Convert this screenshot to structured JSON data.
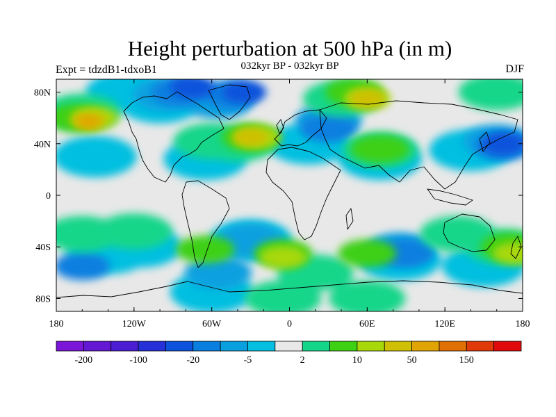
{
  "title": "Height perturbation at 500 hPa (in m)",
  "left_string": "Expt = tdzdB1-tdxoB1",
  "center_string": "032kyr BP - 032kyr BP",
  "right_string": "DJF",
  "map": {
    "projection": "cylindrical-equidistant",
    "lon_range": [
      -180,
      180
    ],
    "lat_range": [
      -90,
      90
    ],
    "x_ticks": [
      {
        "lon": -180,
        "label": "180"
      },
      {
        "lon": -120,
        "label": "120W"
      },
      {
        "lon": -60,
        "label": "60W"
      },
      {
        "lon": 0,
        "label": "0"
      },
      {
        "lon": 60,
        "label": "60E"
      },
      {
        "lon": 120,
        "label": "120E"
      },
      {
        "lon": 180,
        "label": "180"
      }
    ],
    "y_ticks": [
      {
        "lat": 80,
        "label": "80N"
      },
      {
        "lat": 40,
        "label": "40N"
      },
      {
        "lat": 0,
        "label": "0"
      },
      {
        "lat": -40,
        "label": "40S"
      },
      {
        "lat": -80,
        "label": "80S"
      }
    ]
  },
  "colorbar": {
    "colors": [
      "#7b16d9",
      "#6518d3",
      "#4b1ed4",
      "#2630d8",
      "#0d52dc",
      "#0a7fe0",
      "#0aa0e0",
      "#04bfe0",
      "#e8e8e8",
      "#13d68a",
      "#3ed012",
      "#a8d80a",
      "#cfc005",
      "#e0a505",
      "#e06f05",
      "#e03a0a",
      "#e00a0a"
    ],
    "labels": [
      {
        "after_box": 1,
        "text": "-200"
      },
      {
        "after_box": 3,
        "text": "-100"
      },
      {
        "after_box": 5,
        "text": "-20"
      },
      {
        "after_box": 7,
        "text": "-5"
      },
      {
        "after_box": 9,
        "text": "2"
      },
      {
        "after_box": 11,
        "text": "10"
      },
      {
        "after_box": 13,
        "text": "50"
      },
      {
        "after_box": 15,
        "text": "150"
      }
    ]
  },
  "fields": [
    {
      "level": "light-blue",
      "color": "#04bfe0",
      "centers": [
        [
          -150,
          30
        ],
        [
          -125,
          80
        ],
        [
          -100,
          72
        ],
        [
          -65,
          28
        ],
        [
          15,
          40
        ],
        [
          70,
          28
        ],
        [
          140,
          35
        ],
        [
          -140,
          -45
        ],
        [
          -115,
          -40
        ],
        [
          -30,
          -35
        ],
        [
          85,
          -50
        ],
        [
          150,
          -55
        ],
        [
          -60,
          -75
        ]
      ]
    },
    {
      "level": "mid-blue",
      "color": "#0aa0e0",
      "centers": [
        [
          -95,
          78
        ],
        [
          -55,
          72
        ],
        [
          30,
          58
        ],
        [
          160,
          42
        ],
        [
          -55,
          -60
        ],
        [
          85,
          -42
        ],
        [
          -30,
          -35
        ]
      ]
    },
    {
      "level": "blue",
      "color": "#0a7fe0",
      "centers": [
        [
          -85,
          80
        ],
        [
          -45,
          78
        ],
        [
          30,
          52
        ],
        [
          165,
          38
        ],
        [
          -160,
          -55
        ],
        [
          90,
          -45
        ]
      ]
    },
    {
      "level": "dark-blue",
      "color": "#0d52dc",
      "centers": [
        [
          -75,
          84
        ],
        [
          -35,
          80
        ],
        [
          165,
          40
        ]
      ]
    },
    {
      "level": "teal-green",
      "color": "#13d68a",
      "centers": [
        [
          -160,
          65
        ],
        [
          -60,
          42
        ],
        [
          -40,
          40
        ],
        [
          40,
          75
        ],
        [
          70,
          35
        ],
        [
          160,
          80
        ],
        [
          -120,
          -28
        ],
        [
          20,
          -60
        ],
        [
          -160,
          -30
        ],
        [
          -5,
          -80
        ],
        [
          60,
          -80
        ],
        [
          130,
          -30
        ],
        [
          165,
          -40
        ]
      ]
    },
    {
      "level": "green",
      "color": "#3ed012",
      "centers": [
        [
          -165,
          60
        ],
        [
          -30,
          45
        ],
        [
          50,
          80
        ],
        [
          70,
          36
        ],
        [
          -5,
          -45
        ],
        [
          60,
          -45
        ],
        [
          170,
          -40
        ],
        [
          -65,
          -42
        ]
      ]
    },
    {
      "level": "yellow-green",
      "color": "#a8d80a",
      "centers": [
        [
          -150,
          60
        ],
        [
          -25,
          45
        ],
        [
          60,
          75
        ],
        [
          -5,
          -48
        ],
        [
          175,
          -45
        ]
      ]
    },
    {
      "level": "gold",
      "color": "#cfc005",
      "centers": [
        [
          -155,
          58
        ],
        [
          -30,
          45
        ],
        [
          60,
          75
        ]
      ]
    },
    {
      "level": "orange",
      "color": "#e0a505",
      "centers": [
        [
          -155,
          57
        ]
      ]
    }
  ]
}
